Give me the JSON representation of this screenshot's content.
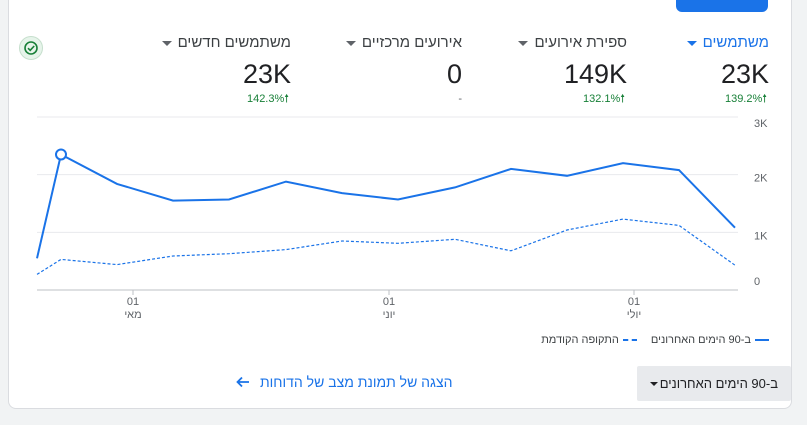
{
  "metrics": [
    {
      "label": "משתמשים",
      "value": "23K",
      "delta": "139.2%",
      "active": true
    },
    {
      "label": "ספירת אירועים",
      "value": "149K",
      "delta": "132.1%",
      "active": false
    },
    {
      "label": "אירועים מרכזיים",
      "value": "0",
      "delta": "-",
      "active": false
    },
    {
      "label": "משתמשים חדשים",
      "value": "23K",
      "delta": "142.3%",
      "active": false
    }
  ],
  "colors": {
    "accent": "#1a73e8",
    "positive": "#188038"
  },
  "icons": {
    "status": "check-circle-icon",
    "delta": "arrow-up-icon",
    "link": "arrow-left-icon"
  },
  "chart_data": {
    "type": "line",
    "y_ticks": [
      "3K",
      "2K",
      "1K",
      "0"
    ],
    "ylim": [
      0,
      3000
    ],
    "x_ticks": [
      {
        "day": "01",
        "month": "מאי"
      },
      {
        "day": "01",
        "month": "יוני"
      },
      {
        "day": "01",
        "month": "יולי"
      }
    ],
    "series": [
      {
        "name": "ב-90 הימים האחרונים",
        "style": "solid",
        "values": [
          550,
          2350,
          1840,
          1550,
          1570,
          1880,
          1680,
          1570,
          1780,
          2100,
          1980,
          2200,
          2080,
          1080
        ]
      },
      {
        "name": "התקופה הקודמת",
        "style": "dashed",
        "values": [
          270,
          530,
          440,
          590,
          630,
          700,
          850,
          810,
          880,
          680,
          1040,
          1230,
          1120,
          430
        ]
      }
    ],
    "grid": true,
    "legend_position": "bottom-right"
  },
  "legend": {
    "current": "ב-90 הימים האחרונים",
    "previous": "התקופה הקודמת"
  },
  "date_range": {
    "label": "ב-90 הימים האחרונים"
  },
  "report_link": {
    "label": "הצגה של תמונת מצב של הדוחות"
  }
}
